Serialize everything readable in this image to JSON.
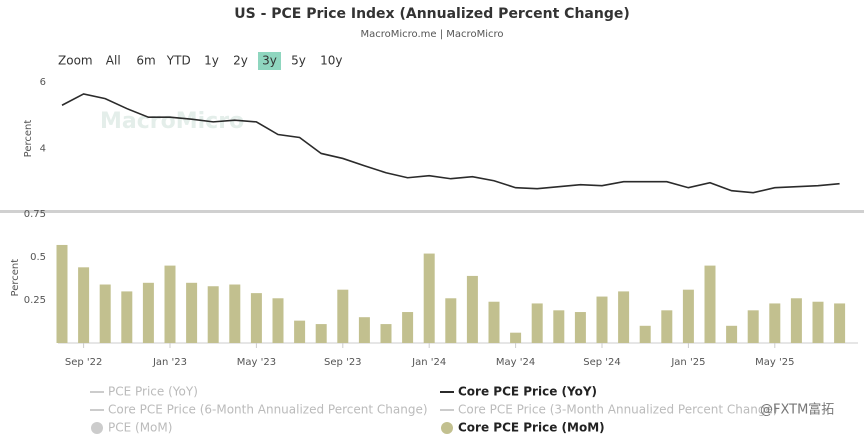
{
  "title": "US - PCE Price Index (Annualized Percent Change)",
  "subtitle": "MacroMicro.me | MacroMicro",
  "watermark": "MacroMicro",
  "corner_mark": "@FXTM富拓",
  "zoom": {
    "label": "Zoom",
    "buttons": [
      "All",
      "6m",
      "YTD",
      "1y",
      "2y",
      "3y",
      "5y",
      "10y"
    ],
    "selected": 5
  },
  "chart_data": [
    {
      "type": "line",
      "ylabel": "Percent",
      "ylim": [
        2.3,
        6.3
      ],
      "yticks": [
        4,
        6
      ],
      "grid": false,
      "series": [
        {
          "name": "Core PCE Price (YoY)",
          "color": "#2b2b2b",
          "values": [
            5.3,
            5.64,
            5.5,
            5.2,
            4.94,
            4.94,
            4.88,
            4.8,
            4.85,
            4.8,
            4.42,
            4.33,
            3.85,
            3.7,
            3.48,
            3.27,
            3.12,
            3.18,
            3.09,
            3.15,
            3.03,
            2.82,
            2.79,
            2.85,
            2.91,
            2.88,
            3.0,
            3.0,
            3.0,
            2.82,
            2.97,
            2.73,
            2.67,
            2.82,
            2.85,
            2.88,
            2.94
          ]
        }
      ]
    },
    {
      "type": "bar",
      "ylabel": "Percent",
      "ylim": [
        0,
        0.76
      ],
      "yticks": [
        0.25,
        0.5,
        0.75
      ],
      "grid": false,
      "categories": [
        null,
        "Sep '22",
        null,
        null,
        null,
        "Jan '23",
        null,
        null,
        null,
        "May '23",
        null,
        null,
        null,
        "Sep '23",
        null,
        null,
        null,
        "Jan '24",
        null,
        null,
        null,
        "May '24",
        null,
        null,
        null,
        "Sep '24",
        null,
        null,
        null,
        "Jan '25",
        null,
        null,
        null,
        "May '25",
        null,
        null,
        null
      ],
      "series": [
        {
          "name": "Core PCE Price (MoM)",
          "color": "#c2c08f",
          "values": [
            0.57,
            0.44,
            0.34,
            0.3,
            0.35,
            0.45,
            0.35,
            0.33,
            0.34,
            0.29,
            0.26,
            0.13,
            0.11,
            0.31,
            0.15,
            0.11,
            0.18,
            0.52,
            0.26,
            0.39,
            0.24,
            0.06,
            0.23,
            0.19,
            0.18,
            0.27,
            0.3,
            0.1,
            0.19,
            0.31,
            0.45,
            0.1,
            0.19,
            0.23,
            0.26,
            0.24,
            0.23
          ]
        }
      ]
    }
  ],
  "legend": [
    {
      "name": "PCE Price (YoY)",
      "symbol": "line",
      "color": "#cccccc",
      "visible": false
    },
    {
      "name": "Core PCE Price (YoY)",
      "symbol": "line",
      "color": "#2b2b2b",
      "visible": true
    },
    {
      "name": "Core PCE Price (6-Month Annualized Percent Change)",
      "symbol": "line",
      "color": "#cccccc",
      "visible": false
    },
    {
      "name": "Core PCE Price (3-Month Annualized Percent Change)",
      "symbol": "line",
      "color": "#cccccc",
      "visible": false
    },
    {
      "name": "PCE (MoM)",
      "symbol": "circle",
      "color": "#cccccc",
      "visible": false
    },
    {
      "name": "Core PCE Price (MoM)",
      "symbol": "circle",
      "color": "#c2c08f",
      "visible": true
    }
  ]
}
